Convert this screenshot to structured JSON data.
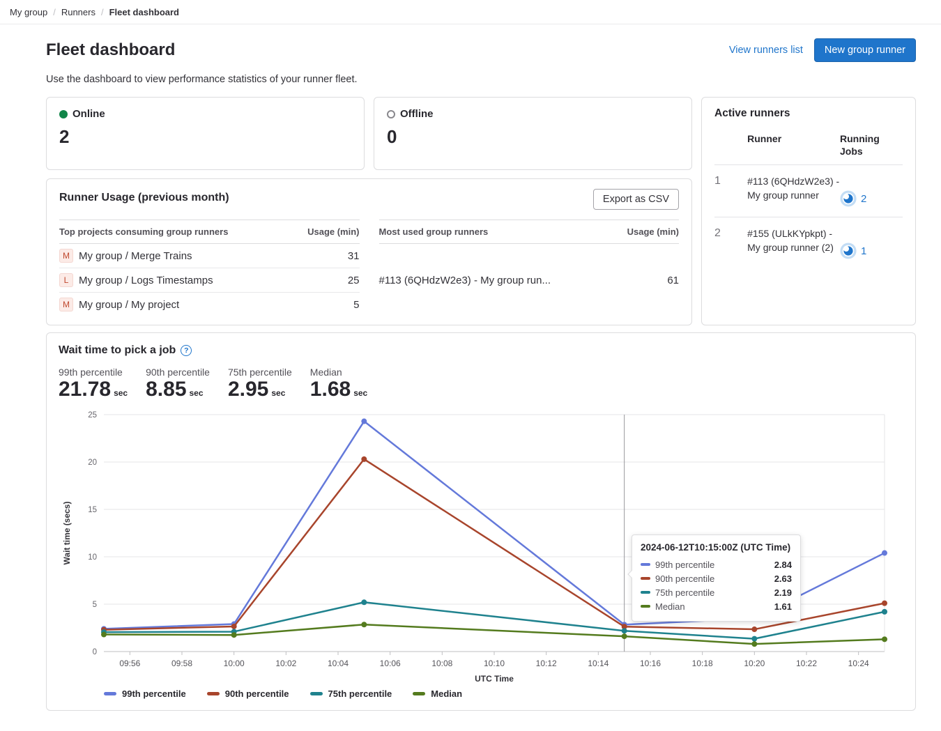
{
  "breadcrumb": {
    "items": [
      "My group",
      "Runners",
      "Fleet dashboard"
    ]
  },
  "header": {
    "title": "Fleet dashboard",
    "view_runners_link": "View runners list",
    "new_runner_button": "New group runner",
    "description": "Use the dashboard to view performance statistics of your runner fleet."
  },
  "colors": {
    "link": "#1f75cb",
    "primary_button": "#1f75cb",
    "online_dot": "#108548",
    "offline_ring": "#89888d"
  },
  "status_cards": {
    "online": {
      "label": "Online",
      "value": "2"
    },
    "offline": {
      "label": "Offline",
      "value": "0"
    }
  },
  "active_runners": {
    "title": "Active runners",
    "columns": {
      "runner": "Runner",
      "jobs": "Running Jobs"
    },
    "rows": [
      {
        "index": "1",
        "runner": "#113 (6QHdzW2e3) - My group runner",
        "jobs": "2"
      },
      {
        "index": "2",
        "runner": "#155 (ULkKYpkpt) - My group runner (2)",
        "jobs": "1"
      }
    ]
  },
  "runner_usage": {
    "title": "Runner Usage (previous month)",
    "export_button": "Export as CSV",
    "projects_table": {
      "columns": [
        "Top projects consuming group runners",
        "Usage (min)"
      ],
      "rows": [
        {
          "avatar": "M",
          "name": "My group / Merge Trains",
          "usage": "31"
        },
        {
          "avatar": "L",
          "name": "My group / Logs Timestamps",
          "usage": "25"
        },
        {
          "avatar": "M",
          "name": "My group / My project",
          "usage": "5"
        }
      ]
    },
    "runners_table": {
      "columns": [
        "Most used group runners",
        "Usage (min)"
      ],
      "rows": [
        {
          "name": "#113 (6QHdzW2e3) - My group run...",
          "usage": "61"
        }
      ]
    }
  },
  "wait_time": {
    "title": "Wait time to pick a job",
    "stats": [
      {
        "label": "99th percentile",
        "value": "21.78",
        "unit": "sec"
      },
      {
        "label": "90th percentile",
        "value": "8.85",
        "unit": "sec"
      },
      {
        "label": "75th percentile",
        "value": "2.95",
        "unit": "sec"
      },
      {
        "label": "Median",
        "value": "1.68",
        "unit": "sec"
      }
    ],
    "tooltip": {
      "title": "2024-06-12T10:15:00Z (UTC Time)",
      "rows": [
        {
          "name": "99th percentile",
          "value": "2.84"
        },
        {
          "name": "90th percentile",
          "value": "2.63"
        },
        {
          "name": "75th percentile",
          "value": "2.19"
        },
        {
          "name": "Median",
          "value": "1.61"
        }
      ]
    }
  },
  "chart_data": {
    "type": "line",
    "title": "Wait time to pick a job",
    "xlabel": "UTC Time",
    "ylabel": "Wait time (secs)",
    "ylim": [
      0,
      25
    ],
    "y_ticks": [
      0,
      5,
      10,
      15,
      20,
      25
    ],
    "grid": true,
    "legend_position": "bottom",
    "x_minutes": [
      0,
      5,
      10,
      20,
      25,
      30
    ],
    "x_times": [
      "09:55",
      "10:00",
      "10:05",
      "10:15",
      "10:20",
      "10:25"
    ],
    "x_tick_labels": [
      "09:56",
      "09:58",
      "10:00",
      "10:02",
      "10:04",
      "10:06",
      "10:08",
      "10:10",
      "10:12",
      "10:14",
      "10:16",
      "10:18",
      "10:20",
      "10:22",
      "10:24"
    ],
    "crosshair_minute": 20,
    "series": [
      {
        "name": "99th percentile",
        "color": "#6479da",
        "values": [
          2.4,
          2.9,
          24.3,
          2.84,
          3.5,
          10.4
        ]
      },
      {
        "name": "90th percentile",
        "color": "#a8452c",
        "values": [
          2.3,
          2.65,
          20.3,
          2.63,
          2.35,
          5.1
        ]
      },
      {
        "name": "75th percentile",
        "color": "#1f828e",
        "values": [
          2.05,
          2.1,
          5.2,
          2.19,
          1.35,
          4.2
        ]
      },
      {
        "name": "Median",
        "color": "#547b1e",
        "values": [
          1.8,
          1.75,
          2.85,
          1.61,
          0.8,
          1.3
        ]
      }
    ]
  }
}
